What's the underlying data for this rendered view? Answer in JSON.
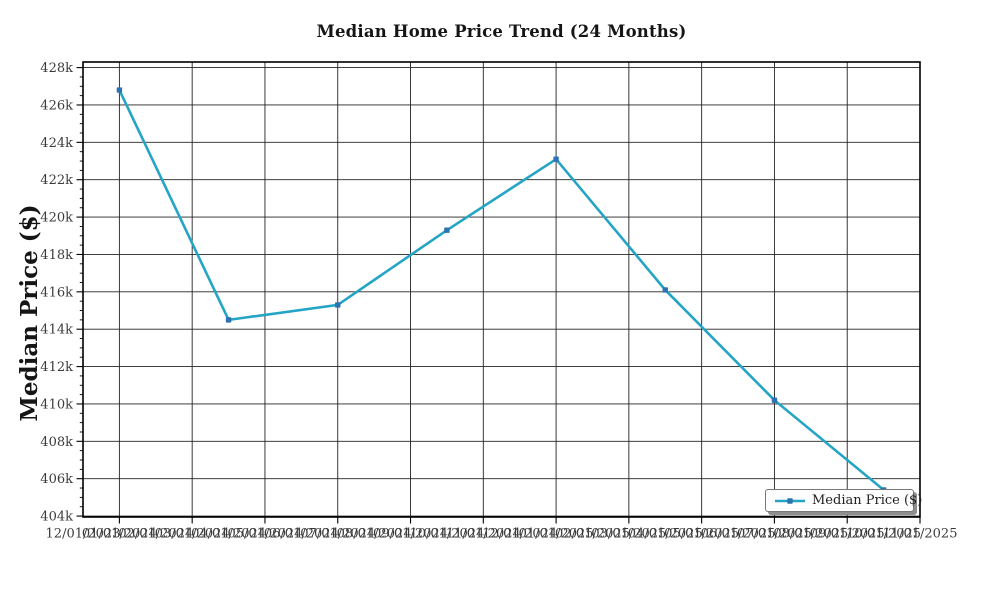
{
  "chart_data": {
    "type": "line",
    "title": "Median Home Price Trend (24 Months)",
    "xlabel": "",
    "ylabel": "Median Price ($)",
    "x_tick_labels": [
      "12/01/2023",
      "01/01/2024",
      "02/01/2024",
      "03/01/2024",
      "04/01/2024",
      "05/01/2024",
      "06/01/2024",
      "07/01/2024",
      "08/01/2024",
      "09/01/2024",
      "10/01/2024",
      "11/01/2024",
      "12/01/2024",
      "01/01/2025",
      "02/01/2025",
      "03/01/2025",
      "04/01/2025",
      "05/01/2025",
      "06/01/2025",
      "07/01/2025",
      "08/01/2025",
      "09/01/2025",
      "10/01/2025",
      "11/01/2025"
    ],
    "gridline_month_indices": [
      1,
      3,
      5,
      7,
      9,
      11,
      13,
      15,
      17,
      19,
      21,
      23
    ],
    "y_ticks": [
      {
        "value": 404,
        "label": "404k"
      },
      {
        "value": 406,
        "label": "406k"
      },
      {
        "value": 408,
        "label": "408k"
      },
      {
        "value": 410,
        "label": "410k"
      },
      {
        "value": 412,
        "label": "412k"
      },
      {
        "value": 414,
        "label": "414k"
      },
      {
        "value": 416,
        "label": "416k"
      },
      {
        "value": 418,
        "label": "418k"
      },
      {
        "value": 420,
        "label": "420k"
      },
      {
        "value": 422,
        "label": "422k"
      },
      {
        "value": 424,
        "label": "424k"
      },
      {
        "value": 426,
        "label": "426k"
      },
      {
        "value": 428,
        "label": "428k"
      }
    ],
    "y_minor_step_k": 0.5,
    "ylim_k": [
      403.95,
      428.3
    ],
    "grid": true,
    "legend": {
      "label": "Median Price ($)",
      "position": "lower right"
    },
    "series": [
      {
        "name": "Median Price ($)",
        "line_color": "#25a5c5",
        "marker_color": "#2c73b4",
        "points": [
          {
            "date": "01/01/2024",
            "month_index": 1,
            "value_k": 426.8
          },
          {
            "date": "04/01/2024",
            "month_index": 4,
            "value_k": 414.5
          },
          {
            "date": "07/01/2024",
            "month_index": 7,
            "value_k": 415.3
          },
          {
            "date": "10/01/2024",
            "month_index": 10,
            "value_k": 419.3
          },
          {
            "date": "01/01/2025",
            "month_index": 13,
            "value_k": 423.1
          },
          {
            "date": "04/01/2025",
            "month_index": 16,
            "value_k": 416.1
          },
          {
            "date": "07/01/2025",
            "month_index": 19,
            "value_k": 410.2
          },
          {
            "date": "10/01/2025",
            "month_index": 22,
            "value_k": 405.4
          }
        ]
      }
    ]
  },
  "colors": {
    "grid": "#232323",
    "spine": "#000000",
    "tick": "#000000",
    "tick_label": "#3b3b3b",
    "title": "#151515",
    "legend_border": "#777777",
    "legend_bg": "#fdfdfd",
    "legend_shadow": "#8f8f8f"
  }
}
